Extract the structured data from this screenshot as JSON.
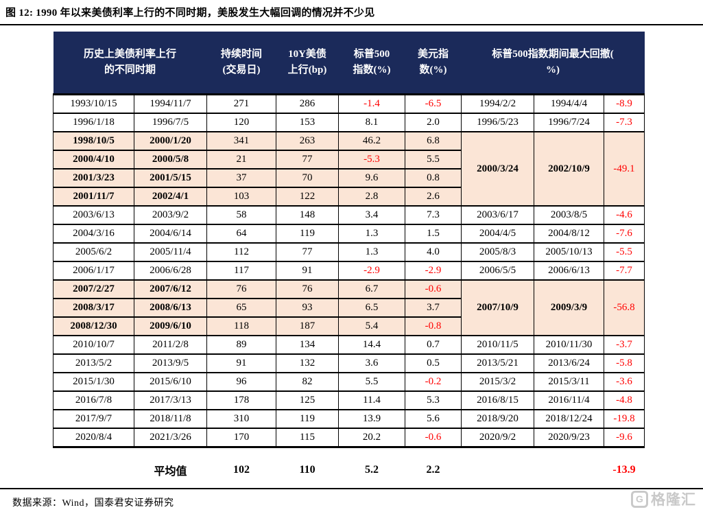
{
  "page": {
    "title": "图 12:  1990 年以来美债利率上行的不同时期，美股发生大幅回调的情况并不少见",
    "source": "数据来源：Wind，国泰君安证券研究",
    "watermark": {
      "logo_letter": "G",
      "text": "格隆汇"
    }
  },
  "colors": {
    "header_bg": "#1B2A5A",
    "header_text": "#FFFFFF",
    "highlight_bg": "#FBE5D6",
    "negative": "#FF0000"
  },
  "chart_data": {
    "type": "table",
    "title": "图 12:  1990 年以来美债利率上行的不同时期，美股发生大幅回调的情况并不少见",
    "headers": {
      "period": "历史上美债利率上行\n的不同时期",
      "duration": "持续时间\n(交易日)",
      "bond": "10Y美债\n上行(bp)",
      "sp500": "标普500\n指数(%)",
      "usd": "美元指\n数(%)",
      "drawdown": "标普500指数期间最大回撤(\n%)"
    },
    "rows": [
      {
        "start": "1993/10/15",
        "end": "1994/11/7",
        "days": "271",
        "bp": "286",
        "sp500": "-1.4",
        "usd": "-6.5",
        "hl": false,
        "dd": {
          "start": "1994/2/2",
          "end": "1994/4/4",
          "pct": "-8.9",
          "span": 1
        }
      },
      {
        "start": "1996/1/18",
        "end": "1996/7/5",
        "days": "120",
        "bp": "153",
        "sp500": "8.1",
        "usd": "2.0",
        "hl": false,
        "dd": {
          "start": "1996/5/23",
          "end": "1996/7/24",
          "pct": "-7.3",
          "span": 1
        }
      },
      {
        "start": "1998/10/5",
        "end": "2000/1/20",
        "days": "341",
        "bp": "263",
        "sp500": "46.2",
        "usd": "6.8",
        "hl": true,
        "dd": {
          "start": "2000/3/24",
          "end": "2002/10/9",
          "pct": "-49.1",
          "span": 4
        }
      },
      {
        "start": "2000/4/10",
        "end": "2000/5/8",
        "days": "21",
        "bp": "77",
        "sp500": "-5.3",
        "usd": "5.5",
        "hl": true
      },
      {
        "start": "2001/3/23",
        "end": "2001/5/15",
        "days": "37",
        "bp": "70",
        "sp500": "9.6",
        "usd": "0.8",
        "hl": true
      },
      {
        "start": "2001/11/7",
        "end": "2002/4/1",
        "days": "103",
        "bp": "122",
        "sp500": "2.8",
        "usd": "2.6",
        "hl": true
      },
      {
        "start": "2003/6/13",
        "end": "2003/9/2",
        "days": "58",
        "bp": "148",
        "sp500": "3.4",
        "usd": "7.3",
        "hl": false,
        "dd": {
          "start": "2003/6/17",
          "end": "2003/8/5",
          "pct": "-4.6",
          "span": 1
        }
      },
      {
        "start": "2004/3/16",
        "end": "2004/6/14",
        "days": "64",
        "bp": "119",
        "sp500": "1.3",
        "usd": "1.5",
        "hl": false,
        "dd": {
          "start": "2004/4/5",
          "end": "2004/8/12",
          "pct": "-7.6",
          "span": 1
        }
      },
      {
        "start": "2005/6/2",
        "end": "2005/11/4",
        "days": "112",
        "bp": "77",
        "sp500": "1.3",
        "usd": "4.0",
        "hl": false,
        "dd": {
          "start": "2005/8/3",
          "end": "2005/10/13",
          "pct": "-5.5",
          "span": 1
        }
      },
      {
        "start": "2006/1/17",
        "end": "2006/6/28",
        "days": "117",
        "bp": "91",
        "sp500": "-2.9",
        "usd": "-2.9",
        "hl": false,
        "dd": {
          "start": "2006/5/5",
          "end": "2006/6/13",
          "pct": "-7.7",
          "span": 1
        }
      },
      {
        "start": "2007/2/27",
        "end": "2007/6/12",
        "days": "76",
        "bp": "76",
        "sp500": "6.7",
        "usd": "-0.6",
        "hl": true,
        "dd": {
          "start": "2007/10/9",
          "end": "2009/3/9",
          "pct": "-56.8",
          "span": 3
        }
      },
      {
        "start": "2008/3/17",
        "end": "2008/6/13",
        "days": "65",
        "bp": "93",
        "sp500": "6.5",
        "usd": "3.7",
        "hl": true
      },
      {
        "start": "2008/12/30",
        "end": "2009/6/10",
        "days": "118",
        "bp": "187",
        "sp500": "5.4",
        "usd": "-0.8",
        "hl": true
      },
      {
        "start": "2010/10/7",
        "end": "2011/2/8",
        "days": "89",
        "bp": "134",
        "sp500": "14.4",
        "usd": "0.7",
        "hl": false,
        "dd": {
          "start": "2010/11/5",
          "end": "2010/11/30",
          "pct": "-3.7",
          "span": 1
        }
      },
      {
        "start": "2013/5/2",
        "end": "2013/9/5",
        "days": "91",
        "bp": "132",
        "sp500": "3.6",
        "usd": "0.5",
        "hl": false,
        "dd": {
          "start": "2013/5/21",
          "end": "2013/6/24",
          "pct": "-5.8",
          "span": 1
        }
      },
      {
        "start": "2015/1/30",
        "end": "2015/6/10",
        "days": "96",
        "bp": "82",
        "sp500": "5.5",
        "usd": "-0.2",
        "hl": false,
        "dd": {
          "start": "2015/3/2",
          "end": "2015/3/11",
          "pct": "-3.6",
          "span": 1
        }
      },
      {
        "start": "2016/7/8",
        "end": "2017/3/13",
        "days": "178",
        "bp": "125",
        "sp500": "11.4",
        "usd": "5.3",
        "hl": false,
        "dd": {
          "start": "2016/8/15",
          "end": "2016/11/4",
          "pct": "-4.8",
          "span": 1
        }
      },
      {
        "start": "2017/9/7",
        "end": "2018/11/8",
        "days": "310",
        "bp": "119",
        "sp500": "13.9",
        "usd": "5.6",
        "hl": false,
        "dd": {
          "start": "2018/9/20",
          "end": "2018/12/24",
          "pct": "-19.8",
          "span": 1
        }
      },
      {
        "start": "2020/8/4",
        "end": "2021/3/26",
        "days": "170",
        "bp": "115",
        "sp500": "20.2",
        "usd": "-0.6",
        "hl": false,
        "dd": {
          "start": "2020/9/2",
          "end": "2020/9/23",
          "pct": "-9.6",
          "span": 1
        }
      }
    ],
    "average": {
      "label": "平均值",
      "days": "102",
      "bp": "110",
      "sp500": "5.2",
      "usd": "2.2",
      "pct": "-13.9"
    }
  }
}
